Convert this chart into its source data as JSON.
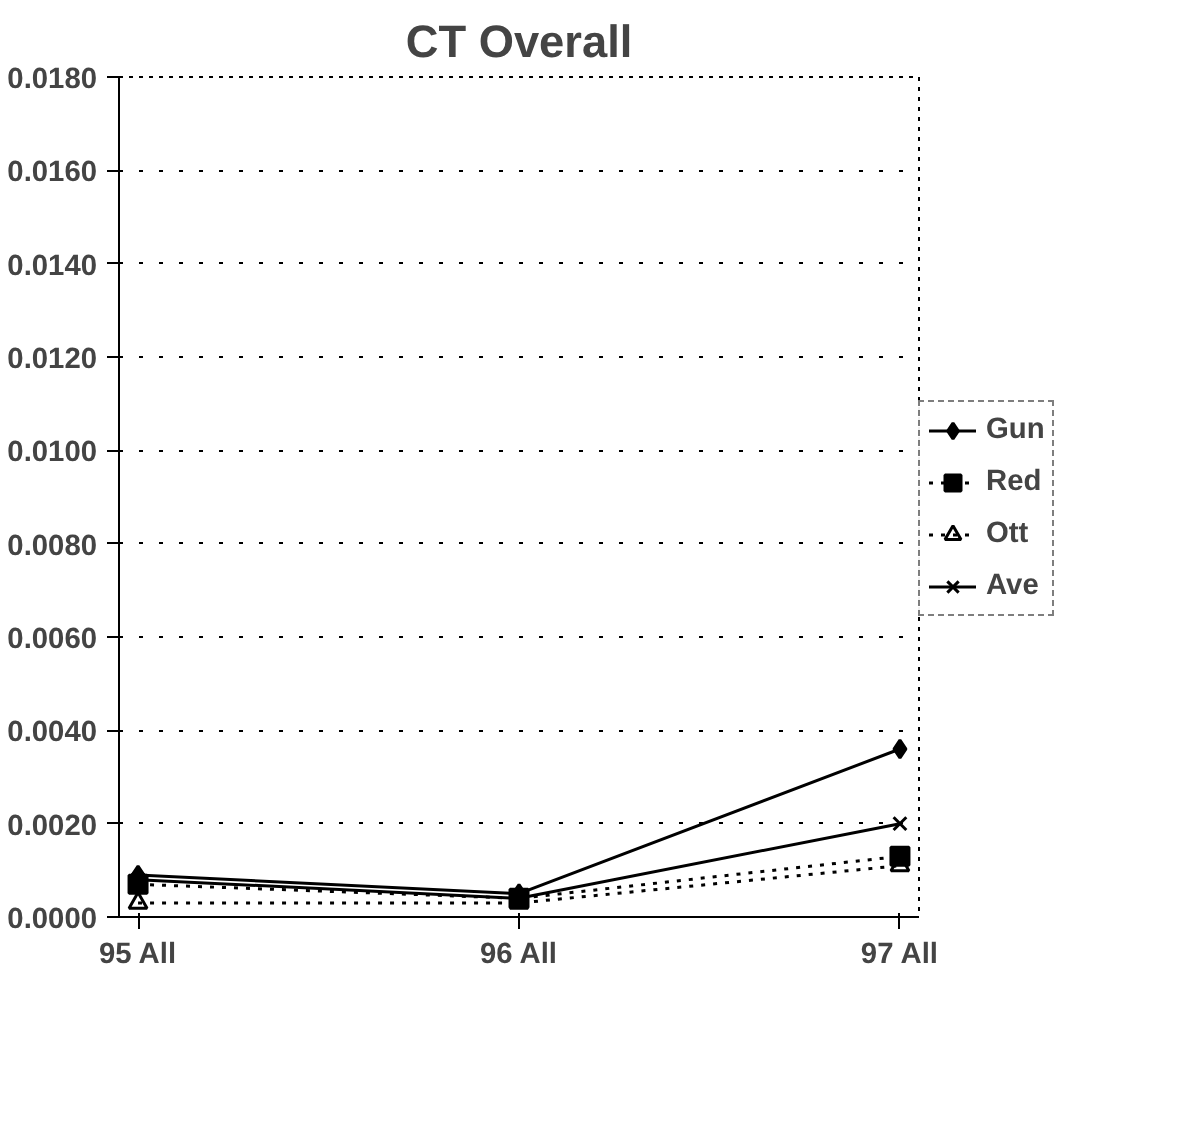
{
  "chart_data": {
    "type": "line",
    "title": "CT Overall",
    "categories": [
      "95 All",
      "96 All",
      "97 All"
    ],
    "series": [
      {
        "name": "Gun",
        "color": "#000000",
        "values": [
          0.0009,
          0.0005,
          0.0036
        ],
        "marker": "diamond",
        "line_style": "solid"
      },
      {
        "name": "Red",
        "color": "#000000",
        "values": [
          0.0007,
          0.0004,
          0.0013
        ],
        "marker": "square",
        "line_style": "dotted"
      },
      {
        "name": "Ott",
        "color": "#000000",
        "values": [
          0.0003,
          0.0003,
          0.0011
        ],
        "marker": "triangle",
        "line_style": "dotted"
      },
      {
        "name": "Ave",
        "color": "#000000",
        "values": [
          0.0008,
          0.0004,
          0.002
        ],
        "marker": "cross",
        "line_style": "solid"
      }
    ],
    "ylim": [
      0,
      0.018
    ],
    "yticks": [
      {
        "value": 0,
        "label": "0.0000"
      },
      {
        "value": 0.002,
        "label": "0.0020"
      },
      {
        "value": 0.004,
        "label": "0.0040"
      },
      {
        "value": 0.006,
        "label": "0.0060"
      },
      {
        "value": 0.008,
        "label": "0.0080"
      },
      {
        "value": 0.01,
        "label": "0.0100"
      },
      {
        "value": 0.012,
        "label": "0.0120"
      },
      {
        "value": 0.014,
        "label": "0.0140"
      },
      {
        "value": 0.016,
        "label": "0.0160"
      },
      {
        "value": 0.018,
        "label": "0.0180"
      }
    ],
    "grid": "y",
    "legend": "right"
  }
}
